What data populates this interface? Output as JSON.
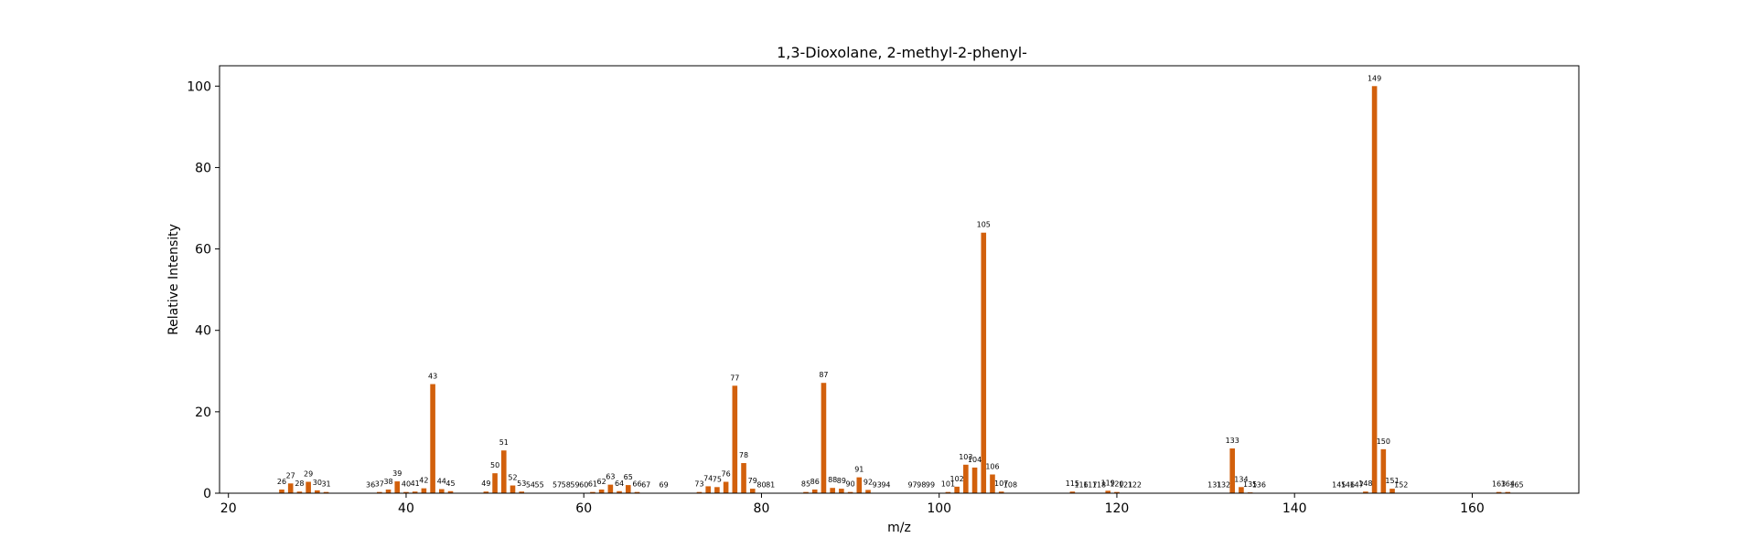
{
  "chart_data": {
    "type": "bar",
    "title": "1,3-Dioxolane, 2-methyl-2-phenyl-",
    "xlabel": "m/z",
    "ylabel": "Relative Intensity",
    "xlim": [
      19,
      172
    ],
    "ylim": [
      0,
      105
    ],
    "xticks": [
      20,
      40,
      60,
      80,
      100,
      120,
      140,
      160
    ],
    "yticks": [
      0,
      20,
      40,
      60,
      80,
      100
    ],
    "grid": false,
    "bar_color": "#d2600c",
    "points": [
      {
        "mz": 26,
        "intensity": 0.9
      },
      {
        "mz": 27,
        "intensity": 2.4
      },
      {
        "mz": 28,
        "intensity": 0.4
      },
      {
        "mz": 29,
        "intensity": 2.8
      },
      {
        "mz": 30,
        "intensity": 0.7
      },
      {
        "mz": 31,
        "intensity": 0.3
      },
      {
        "mz": 36,
        "intensity": 0.1
      },
      {
        "mz": 37,
        "intensity": 0.3
      },
      {
        "mz": 38,
        "intensity": 0.9
      },
      {
        "mz": 39,
        "intensity": 2.9
      },
      {
        "mz": 40,
        "intensity": 0.3
      },
      {
        "mz": 41,
        "intensity": 0.4
      },
      {
        "mz": 42,
        "intensity": 1.2
      },
      {
        "mz": 43,
        "intensity": 26.8
      },
      {
        "mz": 44,
        "intensity": 1.0
      },
      {
        "mz": 45,
        "intensity": 0.5
      },
      {
        "mz": 49,
        "intensity": 0.4
      },
      {
        "mz": 50,
        "intensity": 4.9
      },
      {
        "mz": 51,
        "intensity": 10.5
      },
      {
        "mz": 52,
        "intensity": 1.9
      },
      {
        "mz": 53,
        "intensity": 0.4
      },
      {
        "mz": 54,
        "intensity": 0.1
      },
      {
        "mz": 55,
        "intensity": 0.1
      },
      {
        "mz": 57,
        "intensity": 0.1
      },
      {
        "mz": 58,
        "intensity": 0.1
      },
      {
        "mz": 59,
        "intensity": 0.1
      },
      {
        "mz": 60,
        "intensity": 0.1
      },
      {
        "mz": 61,
        "intensity": 0.3
      },
      {
        "mz": 62,
        "intensity": 0.9
      },
      {
        "mz": 63,
        "intensity": 2.1
      },
      {
        "mz": 64,
        "intensity": 0.5
      },
      {
        "mz": 65,
        "intensity": 2.0
      },
      {
        "mz": 66,
        "intensity": 0.3
      },
      {
        "mz": 67,
        "intensity": 0.1
      },
      {
        "mz": 69,
        "intensity": 0.1
      },
      {
        "mz": 73,
        "intensity": 0.3
      },
      {
        "mz": 74,
        "intensity": 1.7
      },
      {
        "mz": 75,
        "intensity": 1.5
      },
      {
        "mz": 76,
        "intensity": 2.8
      },
      {
        "mz": 77,
        "intensity": 26.4
      },
      {
        "mz": 78,
        "intensity": 7.4
      },
      {
        "mz": 79,
        "intensity": 1.1
      },
      {
        "mz": 80,
        "intensity": 0.1
      },
      {
        "mz": 81,
        "intensity": 0.1
      },
      {
        "mz": 85,
        "intensity": 0.3
      },
      {
        "mz": 86,
        "intensity": 0.9
      },
      {
        "mz": 87,
        "intensity": 27.1
      },
      {
        "mz": 88,
        "intensity": 1.3
      },
      {
        "mz": 89,
        "intensity": 1.1
      },
      {
        "mz": 90,
        "intensity": 0.3
      },
      {
        "mz": 91,
        "intensity": 3.9
      },
      {
        "mz": 92,
        "intensity": 0.8
      },
      {
        "mz": 93,
        "intensity": 0.1
      },
      {
        "mz": 94,
        "intensity": 0.1
      },
      {
        "mz": 97,
        "intensity": 0.1
      },
      {
        "mz": 98,
        "intensity": 0.1
      },
      {
        "mz": 99,
        "intensity": 0.1
      },
      {
        "mz": 101,
        "intensity": 0.3
      },
      {
        "mz": 102,
        "intensity": 1.6
      },
      {
        "mz": 103,
        "intensity": 7.0
      },
      {
        "mz": 104,
        "intensity": 6.3
      },
      {
        "mz": 105,
        "intensity": 64.0
      },
      {
        "mz": 106,
        "intensity": 4.6
      },
      {
        "mz": 107,
        "intensity": 0.4
      },
      {
        "mz": 108,
        "intensity": 0.1
      },
      {
        "mz": 115,
        "intensity": 0.4
      },
      {
        "mz": 116,
        "intensity": 0.1
      },
      {
        "mz": 117,
        "intensity": 0.1
      },
      {
        "mz": 118,
        "intensity": 0.1
      },
      {
        "mz": 119,
        "intensity": 0.6
      },
      {
        "mz": 120,
        "intensity": 0.3
      },
      {
        "mz": 121,
        "intensity": 0.1
      },
      {
        "mz": 122,
        "intensity": 0.1
      },
      {
        "mz": 131,
        "intensity": 0.1
      },
      {
        "mz": 132,
        "intensity": 0.1
      },
      {
        "mz": 133,
        "intensity": 11.0
      },
      {
        "mz": 134,
        "intensity": 1.5
      },
      {
        "mz": 135,
        "intensity": 0.2
      },
      {
        "mz": 136,
        "intensity": 0.1
      },
      {
        "mz": 145,
        "intensity": 0.1
      },
      {
        "mz": 146,
        "intensity": 0.1
      },
      {
        "mz": 147,
        "intensity": 0.1
      },
      {
        "mz": 148,
        "intensity": 0.4
      },
      {
        "mz": 149,
        "intensity": 100
      },
      {
        "mz": 150,
        "intensity": 10.8
      },
      {
        "mz": 151,
        "intensity": 1.1
      },
      {
        "mz": 152,
        "intensity": 0.1
      },
      {
        "mz": 163,
        "intensity": 0.3
      },
      {
        "mz": 164,
        "intensity": 0.3
      },
      {
        "mz": 165,
        "intensity": 0.1
      }
    ]
  }
}
